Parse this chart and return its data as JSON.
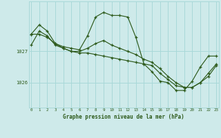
{
  "xlabel": "Graphe pression niveau de la mer (hPa)",
  "bg_color": "#ceeaea",
  "grid_color": "#a8d8d8",
  "line_color": "#2d5a1b",
  "x_ticks": [
    0,
    1,
    2,
    3,
    4,
    5,
    6,
    7,
    8,
    9,
    10,
    11,
    12,
    13,
    14,
    15,
    16,
    17,
    18,
    19,
    20,
    21,
    22,
    23
  ],
  "y_ticks": [
    1026,
    1027
  ],
  "ylim": [
    1025.2,
    1028.6
  ],
  "xlim": [
    -0.3,
    23.3
  ],
  "series": [
    [
      1027.55,
      1027.85,
      1027.65,
      1027.25,
      1027.15,
      1027.1,
      1027.05,
      1027.5,
      1028.1,
      1028.25,
      1028.15,
      1028.15,
      1028.1,
      1027.45,
      1026.6,
      1026.35,
      1026.05,
      1026.0,
      1025.75,
      1025.75,
      1026.05,
      1026.5,
      1026.85,
      1026.85
    ],
    [
      1027.2,
      1027.65,
      1027.5,
      1027.2,
      1027.1,
      1027.0,
      1027.0,
      1027.1,
      1027.25,
      1027.35,
      1027.2,
      1027.1,
      1027.0,
      1026.9,
      1026.75,
      1026.65,
      1026.45,
      1026.2,
      1026.0,
      1025.85,
      1025.85,
      1026.0,
      1026.3,
      1026.6
    ],
    [
      1027.55,
      1027.55,
      1027.45,
      1027.25,
      1027.1,
      1027.0,
      1026.95,
      1026.95,
      1026.9,
      1026.85,
      1026.8,
      1026.75,
      1026.7,
      1026.65,
      1026.6,
      1026.55,
      1026.3,
      1026.1,
      1025.9,
      1025.85,
      1025.85,
      1026.0,
      1026.2,
      1026.55
    ]
  ]
}
